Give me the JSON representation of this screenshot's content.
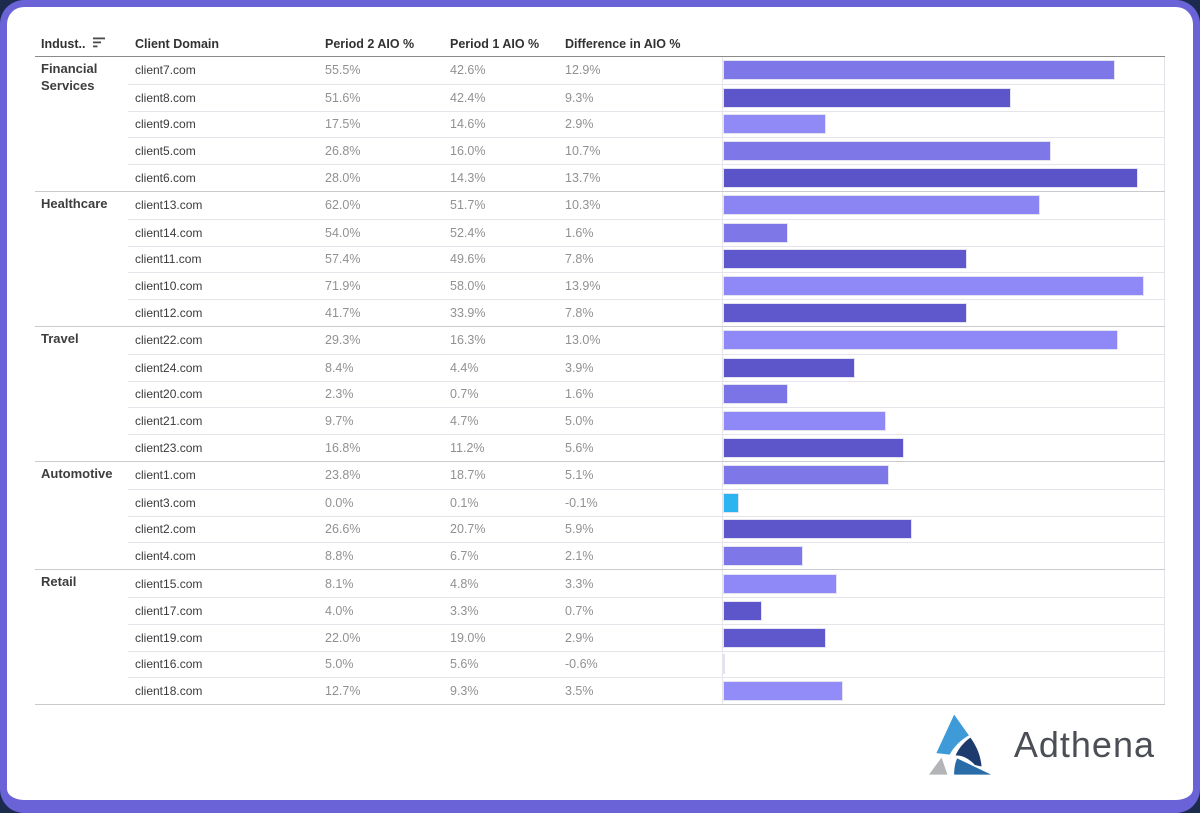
{
  "frame": {
    "outer_background": "#1c2b4d",
    "border_color": "#6a63d8",
    "card_background": "#ffffff"
  },
  "table": {
    "columns": [
      "Indust..",
      "Client Domain",
      "Period 2 AIO %",
      "Period 1 AIO %",
      "Difference in AIO %"
    ],
    "groups": [
      {
        "industry": "Financial Services",
        "rows": [
          {
            "domain": "client7.com",
            "period2": "55.5%",
            "period1": "42.6%",
            "difference": "12.9%",
            "difference_value": 12.9,
            "bar_color": "#7d77e8"
          },
          {
            "domain": "client8.com",
            "period2": "51.6%",
            "period1": "42.4%",
            "difference": "9.3%",
            "difference_value": 9.3,
            "bar_color": "#5d56cb"
          },
          {
            "domain": "client9.com",
            "period2": "17.5%",
            "period1": "14.6%",
            "difference": "2.9%",
            "difference_value": 2.9,
            "bar_color": "#8f8af5"
          },
          {
            "domain": "client5.com",
            "period2": "26.8%",
            "period1": "16.0%",
            "difference": "10.7%",
            "difference_value": 10.7,
            "bar_color": "#7d77e8"
          },
          {
            "domain": "client6.com",
            "period2": "28.0%",
            "period1": "14.3%",
            "difference": "13.7%",
            "difference_value": 13.7,
            "bar_color": "#5b54c9"
          }
        ]
      },
      {
        "industry": "Healthcare",
        "rows": [
          {
            "domain": "client13.com",
            "period2": "62.0%",
            "period1": "51.7%",
            "difference": "10.3%",
            "difference_value": 10.3,
            "bar_color": "#8a85f2"
          },
          {
            "domain": "client14.com",
            "period2": "54.0%",
            "period1": "52.4%",
            "difference": "1.6%",
            "difference_value": 1.6,
            "bar_color": "#7d77e8"
          },
          {
            "domain": "client11.com",
            "period2": "57.4%",
            "period1": "49.6%",
            "difference": "7.8%",
            "difference_value": 7.8,
            "bar_color": "#5f58cd"
          },
          {
            "domain": "client10.com",
            "period2": "71.9%",
            "period1": "58.0%",
            "difference": "13.9%",
            "difference_value": 13.9,
            "bar_color": "#8e89f7"
          },
          {
            "domain": "client12.com",
            "period2": "41.7%",
            "period1": "33.9%",
            "difference": "7.8%",
            "difference_value": 7.8,
            "bar_color": "#5f58cd"
          }
        ]
      },
      {
        "industry": "Travel",
        "rows": [
          {
            "domain": "client22.com",
            "period2": "29.3%",
            "period1": "16.3%",
            "difference": "13.0%",
            "difference_value": 13.0,
            "bar_color": "#8e89f7"
          },
          {
            "domain": "client24.com",
            "period2": "8.4%",
            "period1": "4.4%",
            "difference": "3.9%",
            "difference_value": 3.9,
            "bar_color": "#5d56cb"
          },
          {
            "domain": "client20.com",
            "period2": "2.3%",
            "period1": "0.7%",
            "difference": "1.6%",
            "difference_value": 1.6,
            "bar_color": "#7b74e6"
          },
          {
            "domain": "client21.com",
            "period2": "9.7%",
            "period1": "4.7%",
            "difference": "5.0%",
            "difference_value": 5.0,
            "bar_color": "#8e89f7"
          },
          {
            "domain": "client23.com",
            "period2": "16.8%",
            "period1": "11.2%",
            "difference": "5.6%",
            "difference_value": 5.6,
            "bar_color": "#5d56cb"
          }
        ]
      },
      {
        "industry": "Automotive",
        "rows": [
          {
            "domain": "client1.com",
            "period2": "23.8%",
            "period1": "18.7%",
            "difference": "5.1%",
            "difference_value": 5.1,
            "bar_color": "#7d77e8"
          },
          {
            "domain": "client3.com",
            "period2": "0.0%",
            "period1": "0.1%",
            "difference": "-0.1%",
            "difference_value": -0.1,
            "bar_color": "#2bb5f0"
          },
          {
            "domain": "client2.com",
            "period2": "26.6%",
            "period1": "20.7%",
            "difference": "5.9%",
            "difference_value": 5.9,
            "bar_color": "#5d56cb"
          },
          {
            "domain": "client4.com",
            "period2": "8.8%",
            "period1": "6.7%",
            "difference": "2.1%",
            "difference_value": 2.1,
            "bar_color": "#7d77e8"
          }
        ]
      },
      {
        "industry": "Retail",
        "rows": [
          {
            "domain": "client15.com",
            "period2": "8.1%",
            "period1": "4.8%",
            "difference": "3.3%",
            "difference_value": 3.3,
            "bar_color": "#8e89f7"
          },
          {
            "domain": "client17.com",
            "period2": "4.0%",
            "period1": "3.3%",
            "difference": "0.7%",
            "difference_value": 0.7,
            "bar_color": "#5d56cb"
          },
          {
            "domain": "client19.com",
            "period2": "22.0%",
            "period1": "19.0%",
            "difference": "2.9%",
            "difference_value": 2.9,
            "bar_color": "#5f58cd"
          },
          {
            "domain": "client16.com",
            "period2": "5.0%",
            "period1": "5.6%",
            "difference": "-0.6%",
            "difference_value": -0.6,
            "bar_color": "#14395c"
          },
          {
            "domain": "client18.com",
            "period2": "12.7%",
            "period1": "9.3%",
            "difference": "3.5%",
            "difference_value": 3.5,
            "bar_color": "#918cf7"
          }
        ]
      }
    ]
  },
  "chart_data": {
    "type": "bar",
    "orientation": "horizontal",
    "title": "",
    "xlabel": "Difference in AIO %",
    "ylabel": "Client Domain",
    "grid": false,
    "legend_position": "none",
    "axis_range": [
      -0.65,
      14.6
    ],
    "categories": [
      "client7.com",
      "client8.com",
      "client9.com",
      "client5.com",
      "client6.com",
      "client13.com",
      "client14.com",
      "client11.com",
      "client10.com",
      "client12.com",
      "client22.com",
      "client24.com",
      "client20.com",
      "client21.com",
      "client23.com",
      "client1.com",
      "client3.com",
      "client2.com",
      "client4.com",
      "client15.com",
      "client17.com",
      "client19.com",
      "client16.com",
      "client18.com"
    ],
    "values": [
      12.9,
      9.3,
      2.9,
      10.7,
      13.7,
      10.3,
      1.6,
      7.8,
      13.9,
      7.8,
      13.0,
      3.9,
      1.6,
      5.0,
      5.6,
      5.1,
      -0.1,
      5.9,
      2.1,
      3.3,
      0.7,
      2.9,
      -0.6,
      3.5
    ],
    "bar_colors": [
      "#7d77e8",
      "#5d56cb",
      "#8f8af5",
      "#7d77e8",
      "#5b54c9",
      "#8a85f2",
      "#7d77e8",
      "#5f58cd",
      "#8e89f7",
      "#5f58cd",
      "#8e89f7",
      "#5d56cb",
      "#7b74e6",
      "#8e89f7",
      "#5d56cb",
      "#7d77e8",
      "#2bb5f0",
      "#5d56cb",
      "#7d77e8",
      "#8e89f7",
      "#5d56cb",
      "#5f58cd",
      "#14395c",
      "#918cf7"
    ]
  },
  "logo": {
    "text": "Adthena",
    "text_color": "#4b4f55",
    "triangle_colors": {
      "top": "#3f9bd8",
      "right": "#1d3b6d",
      "bottom_left": "#b2b4b7",
      "bottom_right": "#2a6ca7"
    }
  }
}
